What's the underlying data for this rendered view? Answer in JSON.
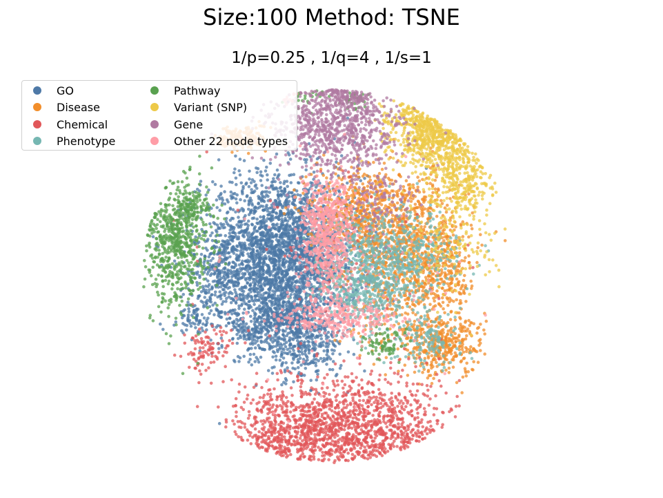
{
  "chart_data": {
    "type": "scatter",
    "title": "Size:100 Method: TSNE",
    "subtitle": "1/p=0.25 , 1/q=4 , 1/s=1",
    "xlabel": "",
    "ylabel": "",
    "grid": false,
    "axes_visible": false,
    "legend_placement": "top-left",
    "series": [
      {
        "name": "GO",
        "color": "#4e79a7",
        "clusters": [
          [
            -72,
            30,
            58,
            58,
            3000
          ],
          [
            -40,
            -100,
            28,
            25,
            300
          ],
          [
            -73,
            -62,
            26,
            22,
            300
          ],
          [
            -115,
            -85,
            12,
            12,
            60
          ],
          [
            -200,
            -60,
            10,
            12,
            60
          ],
          [
            -160,
            -20,
            20,
            30,
            150
          ]
        ]
      },
      {
        "name": "Disease",
        "color": "#f28e2b",
        "clusters": [
          [
            115,
            30,
            42,
            62,
            1100
          ],
          [
            40,
            98,
            38,
            32,
            500
          ],
          [
            160,
            -100,
            30,
            20,
            350
          ],
          [
            -130,
            200,
            18,
            10,
            150
          ],
          [
            175,
            10,
            12,
            30,
            100
          ]
        ]
      },
      {
        "name": "Chemical",
        "color": "#e15759",
        "clusters": [
          [
            40,
            -225,
            72,
            38,
            1600
          ],
          [
            -80,
            -240,
            42,
            38,
            500
          ],
          [
            -180,
            -110,
            18,
            18,
            100
          ],
          [
            25,
            10,
            80,
            70,
            80
          ]
        ]
      },
      {
        "name": "Phenotype",
        "color": "#76b7b2",
        "clusters": [
          [
            85,
            30,
            50,
            32,
            700
          ],
          [
            50,
            -30,
            30,
            24,
            300
          ],
          [
            140,
            -90,
            25,
            20,
            150
          ]
        ]
      },
      {
        "name": "Pathway",
        "color": "#59a14f",
        "clusters": [
          [
            -225,
            50,
            24,
            48,
            700
          ],
          [
            -200,
            100,
            12,
            12,
            100
          ],
          [
            -35,
            270,
            14,
            10,
            60
          ],
          [
            38,
            265,
            10,
            12,
            60
          ],
          [
            75,
            -100,
            14,
            10,
            80
          ]
        ]
      },
      {
        "name": "Variant (SNP)",
        "color": "#edc948",
        "clusters": [
          [
            165,
            200,
            38,
            32,
            800
          ],
          [
            135,
            225,
            25,
            20,
            300
          ],
          [
            195,
            130,
            20,
            20,
            150
          ],
          [
            180,
            70,
            30,
            50,
            200
          ]
        ]
      },
      {
        "name": "Gene",
        "color": "#b07aa1",
        "clusters": [
          [
            5,
            220,
            48,
            40,
            1000
          ],
          [
            20,
            270,
            18,
            10,
            150
          ],
          [
            70,
            110,
            28,
            25,
            100
          ]
        ]
      },
      {
        "name": "Other 22 node types",
        "color": "#ff9da7",
        "clusters": [
          [
            -5,
            45,
            20,
            40,
            500
          ],
          [
            10,
            -60,
            45,
            12,
            300
          ],
          [
            -5,
            100,
            20,
            20,
            150
          ],
          [
            -65,
            270,
            10,
            12,
            50
          ],
          [
            20,
            0,
            80,
            100,
            100
          ]
        ]
      }
    ]
  }
}
